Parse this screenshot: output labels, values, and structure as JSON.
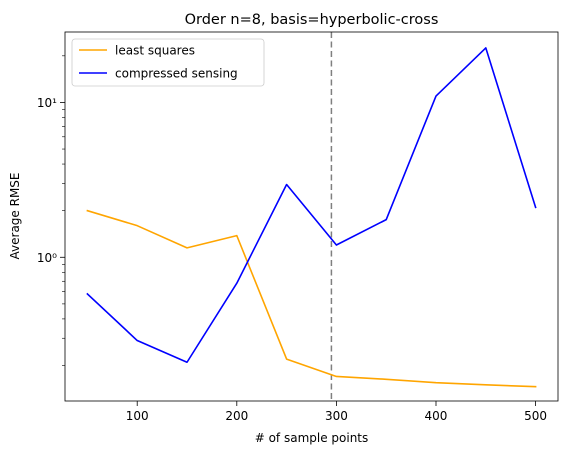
{
  "chart_data": {
    "type": "line",
    "title": "Order n=8, basis=hyperbolic-cross",
    "xlabel": "# of sample points",
    "ylabel": "Average RMSE",
    "yscale": "log",
    "xlim": [
      27.5,
      522.5
    ],
    "ylim": [
      0.118,
      28.5
    ],
    "x_ticks": [
      100,
      200,
      300,
      400,
      500
    ],
    "x_tick_labels": [
      "100",
      "200",
      "300",
      "400",
      "500"
    ],
    "y_ticks": [
      1,
      10
    ],
    "y_tick_labels": [
      "10⁰",
      "10¹"
    ],
    "x": [
      50,
      100,
      150,
      200,
      250,
      300,
      350,
      400,
      450,
      500
    ],
    "series": [
      {
        "name": "least squares",
        "color": "#ffa500",
        "values": [
          2.0,
          1.6,
          1.15,
          1.38,
          0.22,
          0.17,
          0.163,
          0.155,
          0.15,
          0.146
        ]
      },
      {
        "name": "compressed sensing",
        "color": "#0000ff",
        "values": [
          0.58,
          0.29,
          0.21,
          0.68,
          2.95,
          1.2,
          1.75,
          11.0,
          22.5,
          2.1
        ]
      }
    ],
    "vline": {
      "x": 295,
      "color": "#7f7f7f",
      "style": "dashed"
    },
    "legend_position": "top-left",
    "grid": false
  }
}
